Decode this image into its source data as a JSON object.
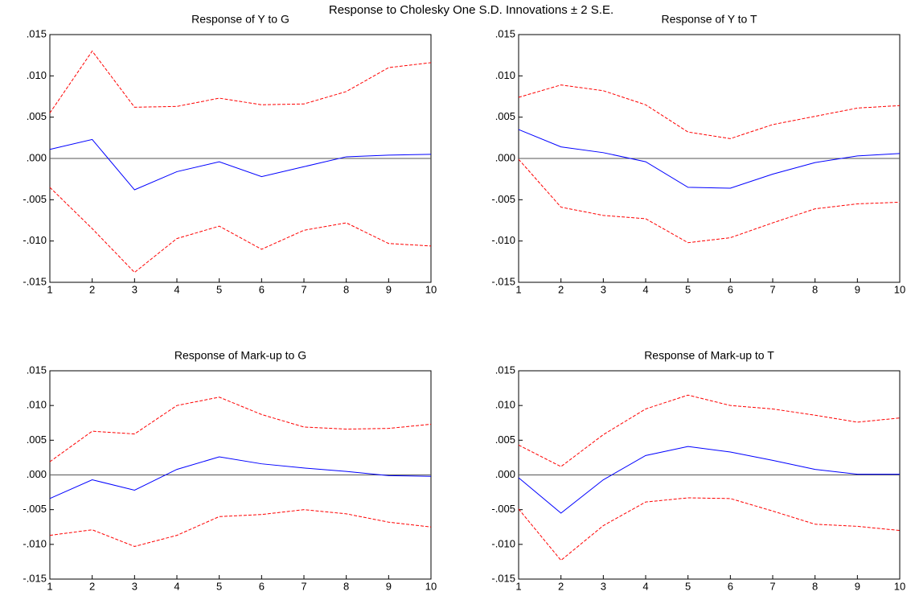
{
  "title": "Response to Cholesky One S.D. Innovations ± 2 S.E.",
  "chart_data": [
    {
      "type": "line",
      "title": "Response of Y to G",
      "x": [
        1,
        2,
        3,
        4,
        5,
        6,
        7,
        8,
        9,
        10
      ],
      "xlim": [
        1,
        10
      ],
      "xticks": [
        1,
        2,
        3,
        4,
        5,
        6,
        7,
        8,
        9,
        10
      ],
      "ylim": [
        -0.015,
        0.015
      ],
      "yticks": [
        {
          "value": -0.015,
          "label": "-.015"
        },
        {
          "value": -0.01,
          "label": "-.010"
        },
        {
          "value": -0.005,
          "label": "-.005"
        },
        {
          "value": 0,
          "label": ".000"
        },
        {
          "value": 0.005,
          "label": ".005"
        },
        {
          "value": 0.01,
          "label": ".010"
        },
        {
          "value": 0.015,
          "label": ".015"
        }
      ],
      "series": [
        {
          "color": "#0000ff",
          "dashed": false,
          "values": [
            0.0011,
            0.0023,
            -0.0038,
            -0.0016,
            -0.0004,
            -0.0022,
            -0.001,
            0.0002,
            0.0004,
            0.0005
          ]
        },
        {
          "color": "#ff0000",
          "dashed": true,
          "values": [
            0.0055,
            0.013,
            0.0062,
            0.0063,
            0.0073,
            0.0065,
            0.0066,
            0.0081,
            0.011,
            0.0116
          ]
        },
        {
          "color": "#ff0000",
          "dashed": true,
          "values": [
            -0.0035,
            -0.0085,
            -0.0138,
            -0.0097,
            -0.0082,
            -0.011,
            -0.0087,
            -0.0078,
            -0.0103,
            -0.0106
          ]
        }
      ]
    },
    {
      "type": "line",
      "title": "Response of Y to T",
      "x": [
        1,
        2,
        3,
        4,
        5,
        6,
        7,
        8,
        9,
        10
      ],
      "xlim": [
        1,
        10
      ],
      "xticks": [
        1,
        2,
        3,
        4,
        5,
        6,
        7,
        8,
        9,
        10
      ],
      "ylim": [
        -0.015,
        0.015
      ],
      "yticks": [
        {
          "value": -0.015,
          "label": "-.015"
        },
        {
          "value": -0.01,
          "label": "-.010"
        },
        {
          "value": -0.005,
          "label": "-.005"
        },
        {
          "value": 0,
          "label": ".000"
        },
        {
          "value": 0.005,
          "label": ".005"
        },
        {
          "value": 0.01,
          "label": ".010"
        },
        {
          "value": 0.015,
          "label": ".015"
        }
      ],
      "series": [
        {
          "color": "#0000ff",
          "dashed": false,
          "values": [
            0.0035,
            0.0014,
            0.0007,
            -0.0004,
            -0.0035,
            -0.0036,
            -0.0019,
            -0.0005,
            0.0003,
            0.0006
          ]
        },
        {
          "color": "#ff0000",
          "dashed": true,
          "values": [
            0.0074,
            0.0089,
            0.0082,
            0.0065,
            0.0032,
            0.0024,
            0.0041,
            0.0051,
            0.0061,
            0.0064
          ]
        },
        {
          "color": "#ff0000",
          "dashed": true,
          "values": [
            -0.0001,
            -0.0059,
            -0.0069,
            -0.0073,
            -0.0102,
            -0.0096,
            -0.0078,
            -0.0061,
            -0.0055,
            -0.0053
          ]
        }
      ]
    },
    {
      "type": "line",
      "title": "Response of Mark-up to G",
      "x": [
        1,
        2,
        3,
        4,
        5,
        6,
        7,
        8,
        9,
        10
      ],
      "xlim": [
        1,
        10
      ],
      "xticks": [
        1,
        2,
        3,
        4,
        5,
        6,
        7,
        8,
        9,
        10
      ],
      "ylim": [
        -0.015,
        0.015
      ],
      "yticks": [
        {
          "value": -0.015,
          "label": "-.015"
        },
        {
          "value": -0.01,
          "label": "-.010"
        },
        {
          "value": -0.005,
          "label": "-.005"
        },
        {
          "value": 0,
          "label": ".000"
        },
        {
          "value": 0.005,
          "label": ".005"
        },
        {
          "value": 0.01,
          "label": ".010"
        },
        {
          "value": 0.015,
          "label": ".015"
        }
      ],
      "series": [
        {
          "color": "#0000ff",
          "dashed": false,
          "values": [
            -0.0034,
            -0.0007,
            -0.0022,
            0.0008,
            0.0026,
            0.0016,
            0.001,
            0.0005,
            -0.0001,
            -0.0002
          ]
        },
        {
          "color": "#ff0000",
          "dashed": true,
          "values": [
            0.0019,
            0.0063,
            0.0059,
            0.01,
            0.0112,
            0.0087,
            0.0069,
            0.0066,
            0.0067,
            0.0073
          ]
        },
        {
          "color": "#ff0000",
          "dashed": true,
          "values": [
            -0.0087,
            -0.0079,
            -0.0103,
            -0.0087,
            -0.006,
            -0.0057,
            -0.005,
            -0.0056,
            -0.0068,
            -0.0075
          ]
        }
      ]
    },
    {
      "type": "line",
      "title": "Response of Mark-up to T",
      "x": [
        1,
        2,
        3,
        4,
        5,
        6,
        7,
        8,
        9,
        10
      ],
      "xlim": [
        1,
        10
      ],
      "xticks": [
        1,
        2,
        3,
        4,
        5,
        6,
        7,
        8,
        9,
        10
      ],
      "ylim": [
        -0.015,
        0.015
      ],
      "yticks": [
        {
          "value": -0.015,
          "label": "-.015"
        },
        {
          "value": -0.01,
          "label": "-.010"
        },
        {
          "value": -0.005,
          "label": "-.005"
        },
        {
          "value": 0,
          "label": ".000"
        },
        {
          "value": 0.005,
          "label": ".005"
        },
        {
          "value": 0.01,
          "label": ".010"
        },
        {
          "value": 0.015,
          "label": ".015"
        }
      ],
      "series": [
        {
          "color": "#0000ff",
          "dashed": false,
          "values": [
            -0.0004,
            -0.0055,
            -0.0007,
            0.0028,
            0.0041,
            0.0033,
            0.0021,
            0.0008,
            0.0001,
            0.0001
          ]
        },
        {
          "color": "#ff0000",
          "dashed": true,
          "values": [
            0.0043,
            0.0012,
            0.0058,
            0.0095,
            0.0115,
            0.01,
            0.0095,
            0.0086,
            0.0076,
            0.0082
          ]
        },
        {
          "color": "#ff0000",
          "dashed": true,
          "values": [
            -0.0049,
            -0.0123,
            -0.0073,
            -0.0039,
            -0.0033,
            -0.0034,
            -0.0052,
            -0.0071,
            -0.0074,
            -0.008
          ]
        }
      ]
    }
  ]
}
